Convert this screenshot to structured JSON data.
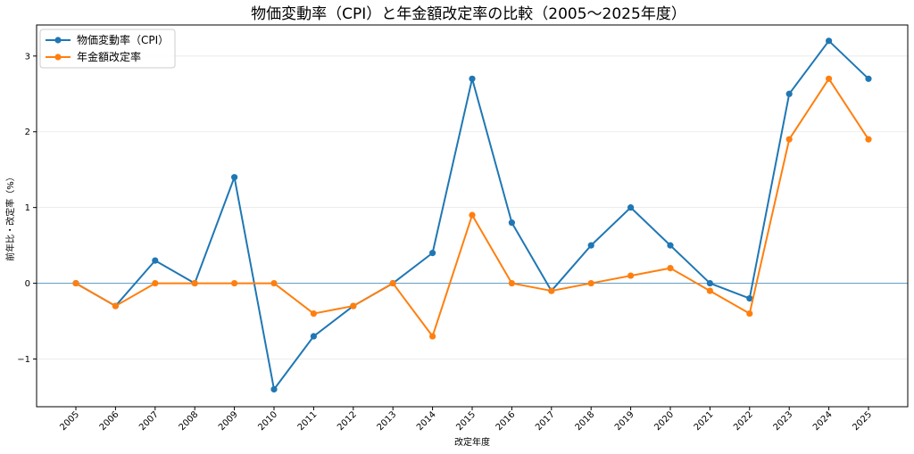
{
  "chart_data": {
    "type": "line",
    "title": "物価変動率（CPI）と年金額改定率の比較（2005〜2025年度）",
    "xlabel": "改定年度",
    "ylabel": "前年比・改定率（%）",
    "categories": [
      "2005",
      "2006",
      "2007",
      "2008",
      "2009",
      "2010",
      "2011",
      "2012",
      "2013",
      "2014",
      "2015",
      "2016",
      "2017",
      "2018",
      "2019",
      "2020",
      "2021",
      "2022",
      "2023",
      "2024",
      "2025"
    ],
    "series": [
      {
        "name": "物価変動率（CPI）",
        "color": "#1f77b4",
        "values": [
          0.0,
          -0.3,
          0.3,
          0.0,
          1.4,
          -1.4,
          -0.7,
          -0.3,
          0.0,
          0.4,
          2.7,
          0.8,
          -0.1,
          0.5,
          1.0,
          0.5,
          0.0,
          -0.2,
          2.5,
          3.2,
          2.7
        ]
      },
      {
        "name": "年金額改定率",
        "color": "#ff7f0e",
        "values": [
          0.0,
          -0.3,
          0.0,
          0.0,
          0.0,
          0.0,
          -0.4,
          -0.3,
          0.0,
          -0.7,
          0.9,
          0.0,
          -0.1,
          0.0,
          0.1,
          0.2,
          -0.1,
          -0.4,
          1.9,
          2.7,
          1.9
        ]
      }
    ],
    "yticks": [
      "−1",
      "0",
      "1",
      "2",
      "3"
    ],
    "ylim": [
      -1.63,
      3.41
    ],
    "zero_line": true,
    "grid": "y",
    "legend": "top-left"
  }
}
